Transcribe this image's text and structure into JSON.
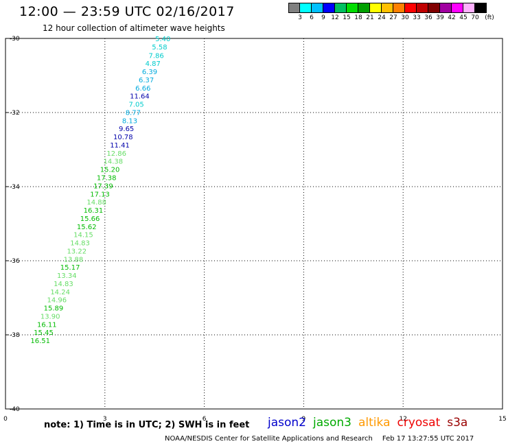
{
  "header": {
    "title": "12:00 — 23:59 UTC 02/16/2017",
    "subtitle": "12 hour collection of altimeter wave heights"
  },
  "legend": {
    "unit": "(ft)",
    "labels": [
      "3",
      "6",
      "9",
      "12",
      "15",
      "18",
      "21",
      "24",
      "27",
      "30",
      "33",
      "36",
      "39",
      "42",
      "45",
      "70"
    ],
    "colors": [
      "#808080",
      "#00ffff",
      "#00c0ff",
      "#0000ff",
      "#00c060",
      "#00dd00",
      "#00a000",
      "#ffff00",
      "#ffc000",
      "#ff8000",
      "#ff0000",
      "#c00000",
      "#800000",
      "#a000a0",
      "#ff00ff",
      "#ffb0ff",
      "#000000"
    ]
  },
  "footer": {
    "note": "note:  1) Time is in UTC;  2) SWH is in feet",
    "satellites": [
      {
        "name": "jason2",
        "color": "#0000cc"
      },
      {
        "name": "jason3",
        "color": "#00aa00"
      },
      {
        "name": "altika",
        "color": "#ff9900"
      },
      {
        "name": "cryosat",
        "color": "#ee0000"
      },
      {
        "name": "s3a",
        "color": "#990000"
      }
    ],
    "credit": "NOAA/NESDIS Center for Satellite Applications and Research",
    "timestamp": "Feb 17 13:27:55 UTC 2017"
  },
  "chart_data": {
    "type": "scatter",
    "xlim": [
      0,
      15
    ],
    "ylim": [
      -40,
      -30
    ],
    "x_ticks": [
      "0",
      "3",
      "6",
      "9",
      "12",
      "15"
    ],
    "y_ticks": [
      "-30",
      "-32",
      "-34",
      "-36",
      "-38",
      "-40"
    ],
    "grid": true,
    "tracks": [
      {
        "points": [
          {
            "x": 4.75,
            "y": -30.0,
            "v": "5.40",
            "c": "#00cccc"
          },
          {
            "x": 4.65,
            "y": -30.22,
            "v": "5.58",
            "c": "#00cccc"
          },
          {
            "x": 4.55,
            "y": -30.45,
            "v": "7.86",
            "c": "#00cccc"
          },
          {
            "x": 4.45,
            "y": -30.67,
            "v": "4.87",
            "c": "#00cccc"
          },
          {
            "x": 4.35,
            "y": -30.89,
            "v": "6.39",
            "c": "#00aadd"
          },
          {
            "x": 4.25,
            "y": -31.11,
            "v": "6.37",
            "c": "#00aadd"
          },
          {
            "x": 4.15,
            "y": -31.33,
            "v": "6.66",
            "c": "#00aadd"
          },
          {
            "x": 4.05,
            "y": -31.55,
            "v": "11.64",
            "c": "#0000aa"
          },
          {
            "x": 3.95,
            "y": -31.77,
            "v": "7.05",
            "c": "#00cccc"
          },
          {
            "x": 3.85,
            "y": -31.99,
            "v": "8.77",
            "c": "#00aadd"
          },
          {
            "x": 3.75,
            "y": -32.21,
            "v": "8.13",
            "c": "#00aadd"
          },
          {
            "x": 3.65,
            "y": -32.43,
            "v": "9.65",
            "c": "#0000aa"
          },
          {
            "x": 3.55,
            "y": -32.65,
            "v": "10.78",
            "c": "#0000aa"
          },
          {
            "x": 3.45,
            "y": -32.87,
            "v": "11.41",
            "c": "#0000aa"
          },
          {
            "x": 3.35,
            "y": -33.09,
            "v": "12.86",
            "c": "#66dd66"
          },
          {
            "x": 3.25,
            "y": -33.31,
            "v": "14.38",
            "c": "#66dd66"
          },
          {
            "x": 3.15,
            "y": -33.53,
            "v": "15.20",
            "c": "#00bb00"
          },
          {
            "x": 3.05,
            "y": -33.75,
            "v": "17.38",
            "c": "#00bb00"
          },
          {
            "x": 2.95,
            "y": -33.97,
            "v": "17.39",
            "c": "#00bb00"
          },
          {
            "x": 2.85,
            "y": -34.19,
            "v": "17.13",
            "c": "#00bb00"
          },
          {
            "x": 2.75,
            "y": -34.41,
            "v": "14.88",
            "c": "#66dd66"
          },
          {
            "x": 2.65,
            "y": -34.63,
            "v": "16.31",
            "c": "#00bb00"
          },
          {
            "x": 2.55,
            "y": -34.85,
            "v": "15.66",
            "c": "#00bb00"
          },
          {
            "x": 2.45,
            "y": -35.07,
            "v": "15.62",
            "c": "#00bb00"
          },
          {
            "x": 2.35,
            "y": -35.29,
            "v": "14.15",
            "c": "#66dd66"
          },
          {
            "x": 2.25,
            "y": -35.51,
            "v": "14.83",
            "c": "#66dd66"
          },
          {
            "x": 2.15,
            "y": -35.73,
            "v": "13.22",
            "c": "#66dd66"
          },
          {
            "x": 2.05,
            "y": -35.95,
            "v": "13.88",
            "c": "#66dd66"
          },
          {
            "x": 1.95,
            "y": -36.17,
            "v": "15.17",
            "c": "#00bb00"
          },
          {
            "x": 1.85,
            "y": -36.39,
            "v": "13.34",
            "c": "#66dd66"
          },
          {
            "x": 1.75,
            "y": -36.61,
            "v": "14.83",
            "c": "#66dd66"
          },
          {
            "x": 1.65,
            "y": -36.83,
            "v": "14.24",
            "c": "#66dd66"
          },
          {
            "x": 1.55,
            "y": -37.05,
            "v": "14.96",
            "c": "#66dd66"
          },
          {
            "x": 1.45,
            "y": -37.27,
            "v": "15.89",
            "c": "#00bb00"
          },
          {
            "x": 1.35,
            "y": -37.49,
            "v": "13.90",
            "c": "#66dd66"
          },
          {
            "x": 1.25,
            "y": -37.71,
            "v": "16.11",
            "c": "#00bb00"
          },
          {
            "x": 1.15,
            "y": -37.93,
            "v": "15.45",
            "c": "#00bb00"
          },
          {
            "x": 1.05,
            "y": -38.15,
            "v": "16.51",
            "c": "#00bb00"
          }
        ]
      }
    ]
  }
}
